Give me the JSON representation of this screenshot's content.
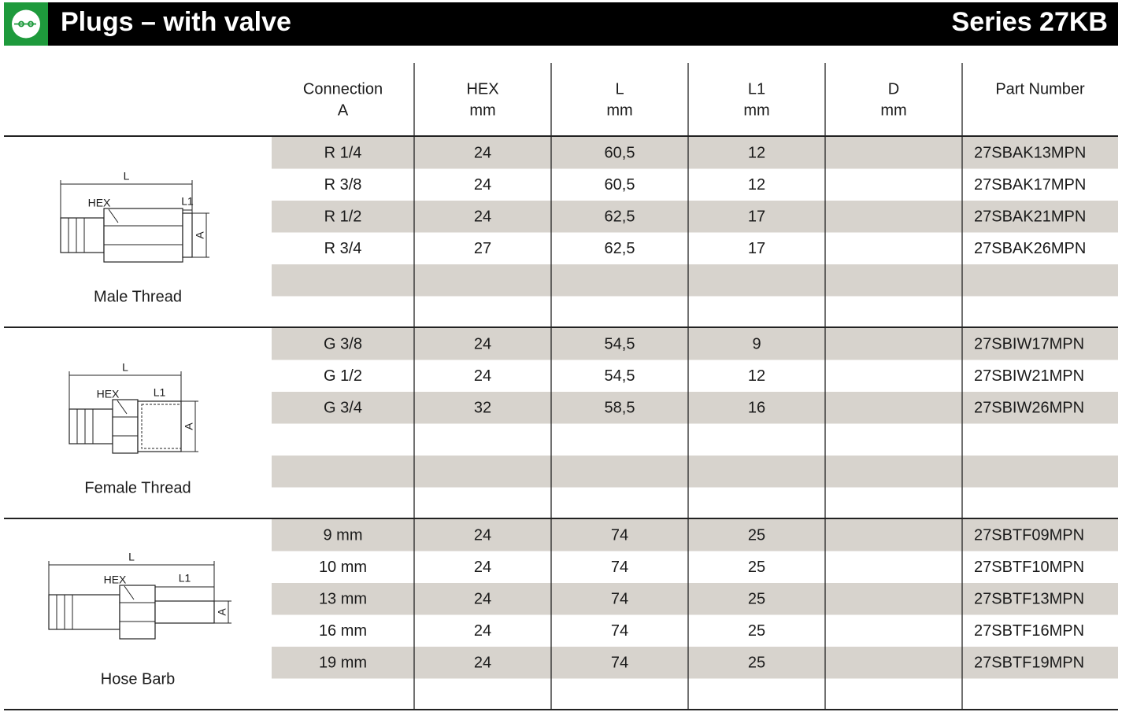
{
  "header": {
    "title": "Plugs – with valve",
    "series": "Series 27KB"
  },
  "table": {
    "columns": [
      {
        "label": "Connection",
        "unit": "A"
      },
      {
        "label": "HEX",
        "unit": "mm"
      },
      {
        "label": "L",
        "unit": "mm"
      },
      {
        "label": "L1",
        "unit": "mm"
      },
      {
        "label": "D",
        "unit": "mm"
      },
      {
        "label": "Part Number"
      }
    ],
    "groups": [
      {
        "label": "Male Thread",
        "drawing_labels": [
          "L",
          "HEX",
          "L1",
          "A"
        ],
        "rows": [
          [
            "R 1/4",
            "24",
            "60,5",
            "12",
            "27SBAK13MPN"
          ],
          [
            "R 3/8",
            "24",
            "60,5",
            "12",
            "27SBAK17MPN"
          ],
          [
            "R 1/2",
            "24",
            "62,5",
            "17",
            "27SBAK21MPN"
          ],
          [
            "R 3/4",
            "27",
            "62,5",
            "17",
            "27SBAK26MPN"
          ]
        ]
      },
      {
        "label": "Female Thread",
        "drawing_labels": [
          "L",
          "HEX",
          "L1",
          "A"
        ],
        "rows": [
          [
            "G 3/8",
            "24",
            "54,5",
            "9",
            "27SBIW17MPN"
          ],
          [
            "G 1/2",
            "24",
            "54,5",
            "12",
            "27SBIW21MPN"
          ],
          [
            "G 3/4",
            "32",
            "58,5",
            "16",
            "27SBIW26MPN"
          ]
        ]
      },
      {
        "label": "Hose Barb",
        "drawing_labels": [
          "L",
          "HEX",
          "L1",
          "A"
        ],
        "rows": [
          [
            "9 mm",
            "24",
            "74",
            "25",
            "27SBTF09MPN"
          ],
          [
            "10 mm",
            "24",
            "74",
            "25",
            "27SBTF10MPN"
          ],
          [
            "13 mm",
            "24",
            "74",
            "25",
            "27SBTF13MPN"
          ],
          [
            "16 mm",
            "24",
            "74",
            "25",
            "27SBTF16MPN"
          ],
          [
            "19 mm",
            "24",
            "74",
            "25",
            "27SBTF19MPN"
          ]
        ]
      }
    ]
  }
}
